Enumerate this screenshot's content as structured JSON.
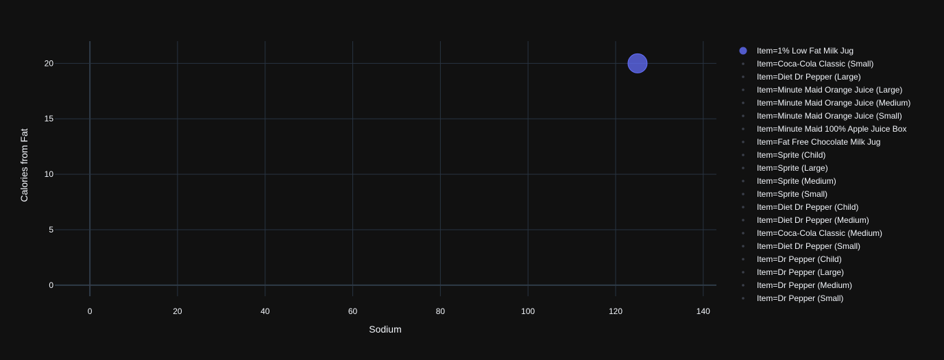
{
  "colors": {
    "background": "#111111",
    "grid": "#283442",
    "zero_line": "#2f3b48",
    "text": "#f2f5fa",
    "legend_hidden_text": "#8a8d93",
    "active_marker": "#636efa",
    "faded_marker": "#3a3f4a"
  },
  "chart_data": {
    "type": "scatter",
    "xlabel": "Sodium",
    "ylabel": "Calories from Fat",
    "xlim": [
      -8,
      143
    ],
    "ylim": [
      -1,
      22
    ],
    "x_ticks": [
      0,
      20,
      40,
      60,
      80,
      100,
      120,
      140
    ],
    "y_ticks": [
      0,
      5,
      10,
      15,
      20
    ],
    "grid": true,
    "legend_placement": "right",
    "series": [
      {
        "name": "Item=1% Low Fat Milk Jug",
        "x": [
          125
        ],
        "y": [
          20
        ],
        "size": 20,
        "visible": true
      },
      {
        "name": "Item=Coca-Cola Classic (Small)",
        "x": [
          0
        ],
        "y": [
          0
        ],
        "size": 0,
        "visible": true
      },
      {
        "name": "Item=Diet Dr Pepper (Large)",
        "x": [],
        "y": [],
        "visible": false
      },
      {
        "name": "Item=Minute Maid Orange Juice (Large)",
        "x": [
          0
        ],
        "y": [
          0
        ],
        "size": 0,
        "visible": true
      },
      {
        "name": "Item=Minute Maid Orange Juice (Medium)",
        "x": [
          0
        ],
        "y": [
          0
        ],
        "size": 0,
        "visible": true
      },
      {
        "name": "Item=Minute Maid Orange Juice (Small)",
        "x": [
          0
        ],
        "y": [
          0
        ],
        "size": 0,
        "visible": true
      },
      {
        "name": "Item=Minute Maid 100% Apple Juice Box",
        "x": [
          0
        ],
        "y": [
          0
        ],
        "size": 0,
        "visible": true
      },
      {
        "name": "Item=Fat Free Chocolate Milk Jug",
        "x": [
          0
        ],
        "y": [
          0
        ],
        "size": 0,
        "visible": true
      },
      {
        "name": "Item=Sprite (Child)",
        "x": [
          0
        ],
        "y": [
          0
        ],
        "size": 0,
        "visible": true
      },
      {
        "name": "Item=Sprite (Large)",
        "x": [
          0
        ],
        "y": [
          0
        ],
        "size": 0,
        "visible": true
      },
      {
        "name": "Item=Sprite (Medium)",
        "x": [
          0
        ],
        "y": [
          0
        ],
        "size": 0,
        "visible": true
      },
      {
        "name": "Item=Sprite (Small)",
        "x": [
          0
        ],
        "y": [
          0
        ],
        "size": 0,
        "visible": true
      },
      {
        "name": "Item=Diet Dr Pepper (Child)",
        "x": [
          0
        ],
        "y": [
          0
        ],
        "size": 0,
        "visible": true
      },
      {
        "name": "Item=Diet Dr Pepper (Medium)",
        "x": [
          0
        ],
        "y": [
          0
        ],
        "size": 0,
        "visible": true
      },
      {
        "name": "Item=Coca-Cola Classic (Medium)",
        "x": [
          0
        ],
        "y": [
          0
        ],
        "size": 0,
        "visible": true
      },
      {
        "name": "Item=Diet Dr Pepper (Small)",
        "x": [
          0
        ],
        "y": [
          0
        ],
        "size": 0,
        "visible": true
      },
      {
        "name": "Item=Dr Pepper (Child)",
        "x": [
          0
        ],
        "y": [
          0
        ],
        "size": 0,
        "visible": true
      },
      {
        "name": "Item=Dr Pepper (Large)",
        "x": [
          0
        ],
        "y": [
          0
        ],
        "size": 0,
        "visible": true
      },
      {
        "name": "Item=Dr Pepper (Medium)",
        "x": [
          0
        ],
        "y": [
          0
        ],
        "size": 0,
        "visible": true
      },
      {
        "name": "Item=Dr Pepper (Small)",
        "x": [
          0
        ],
        "y": [
          0
        ],
        "size": 0,
        "visible": true
      }
    ]
  }
}
